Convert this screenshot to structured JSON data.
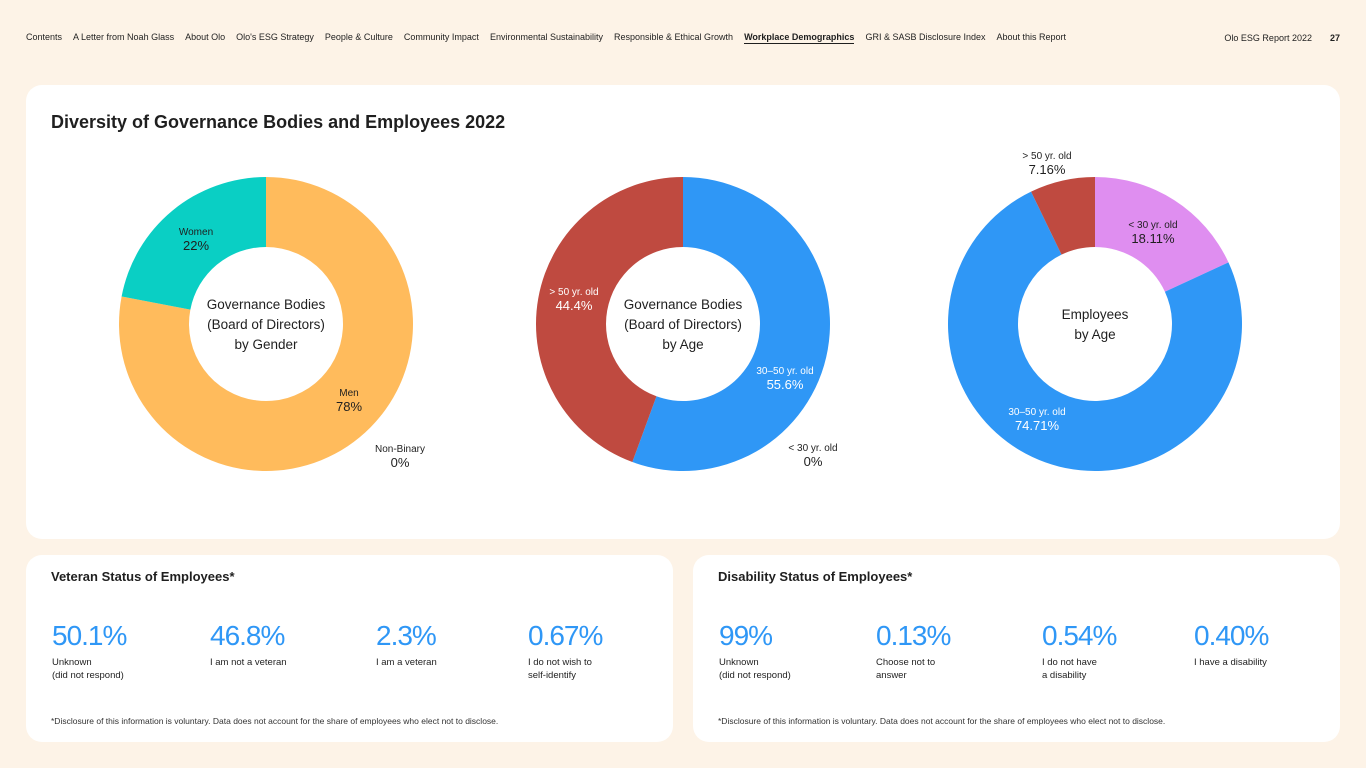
{
  "nav": {
    "items": [
      {
        "label": "Contents",
        "active": false
      },
      {
        "label": "A Letter from Noah Glass",
        "active": false
      },
      {
        "label": "About Olo",
        "active": false
      },
      {
        "label": "Olo's ESG Strategy",
        "active": false
      },
      {
        "label": "People & Culture",
        "active": false
      },
      {
        "label": "Community Impact",
        "active": false
      },
      {
        "label": "Environmental Sustainability",
        "active": false
      },
      {
        "label": "Responsible & Ethical Growth",
        "active": false
      },
      {
        "label": "Workplace Demographics",
        "active": true
      },
      {
        "label": "GRI & SASB Disclosure Index",
        "active": false
      },
      {
        "label": "About this Report",
        "active": false
      }
    ],
    "report_title": "Olo ESG Report 2022",
    "page_number": "27"
  },
  "main_title": "Diversity of Governance Bodies and Employees 2022",
  "chart_data": [
    {
      "type": "pie",
      "center_label": [
        "Governance Bodies",
        "(Board of Directors)",
        "by Gender"
      ],
      "slices": [
        {
          "label": "Men",
          "value": 78,
          "value_label": "78%",
          "color": "#ffbb5c"
        },
        {
          "label": "Women",
          "value": 22,
          "value_label": "22%",
          "color": "#0acfc4"
        },
        {
          "label": "Non-Binary",
          "value": 0,
          "value_label": "0%",
          "color": "#888888"
        }
      ]
    },
    {
      "type": "pie",
      "center_label": [
        "Governance Bodies",
        "(Board of Directors)",
        "by Age"
      ],
      "slices": [
        {
          "label": "30–50 yr. old",
          "value": 55.6,
          "value_label": "55.6%",
          "color": "#2f97f6"
        },
        {
          "label": "> 50 yr. old",
          "value": 44.4,
          "value_label": "44.4%",
          "color": "#bf4a40"
        },
        {
          "label": "< 30 yr. old",
          "value": 0,
          "value_label": "0%",
          "color": "#df8ef0"
        }
      ]
    },
    {
      "type": "pie",
      "center_label": [
        "Employees",
        "by Age"
      ],
      "slices": [
        {
          "label": "< 30 yr. old",
          "value": 18.11,
          "value_label": "18.11%",
          "color": "#df8ef0"
        },
        {
          "label": "30–50 yr. old",
          "value": 74.71,
          "value_label": "74.71%",
          "color": "#2f97f6"
        },
        {
          "label": "> 50 yr. old",
          "value": 7.16,
          "value_label": "7.16%",
          "color": "#bf4a40"
        }
      ]
    }
  ],
  "veteran": {
    "title": "Veteran Status of Employees*",
    "stats": [
      {
        "value": "50.1%",
        "label": "Unknown\n(did not respond)"
      },
      {
        "value": "46.8%",
        "label": "I am not a veteran"
      },
      {
        "value": "2.3%",
        "label": "I am a veteran"
      },
      {
        "value": "0.67%",
        "label": "I do not wish to\nself-identify"
      }
    ],
    "footnote": "*Disclosure of this information is voluntary. Data does not account for the share of employees who elect not to disclose."
  },
  "disability": {
    "title": "Disability Status of Employees*",
    "stats": [
      {
        "value": "99%",
        "label": "Unknown\n(did not respond)"
      },
      {
        "value": "0.13%",
        "label": "Choose not to\nanswer"
      },
      {
        "value": "0.54%",
        "label": "I do not have\na disability"
      },
      {
        "value": "0.40%",
        "label": "I have a disability"
      }
    ],
    "footnote": "*Disclosure of this information is voluntary. Data does not account for the share of employees who elect not to disclose."
  },
  "colors": {
    "background": "#fdf3e7",
    "card": "#ffffff",
    "accent_blue": "#2f97f6"
  }
}
